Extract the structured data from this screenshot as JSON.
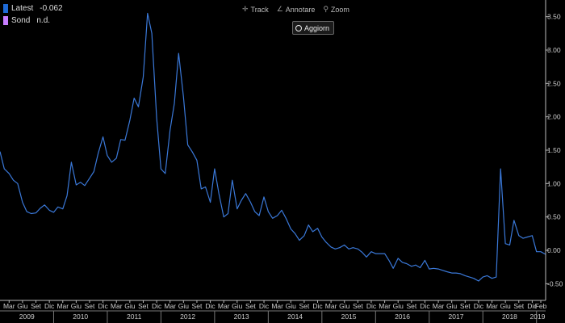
{
  "toolbar": {
    "track_label": "Track",
    "annotate_label": "Annotare",
    "zoom_label": "Zoom",
    "update_label": "Aggiorn",
    "icons": [
      "crosshair-icon",
      "pencil-icon",
      "magnifier-icon",
      "refresh-circle-icon"
    ]
  },
  "legend": {
    "items": [
      {
        "label": "Latest",
        "value": "-0.062",
        "color": "#1e6ad6"
      },
      {
        "label": "Sond",
        "value": "n.d.",
        "color": "#c77dff"
      }
    ]
  },
  "chart_data": {
    "type": "line",
    "background": "#000000",
    "line_color": "#3a78d8",
    "grid": false,
    "y_axis_position": "right",
    "ylim": [
      -0.75,
      3.75
    ],
    "y_ticks": [
      3.5,
      3.0,
      2.5,
      2.0,
      1.5,
      1.0,
      0.5,
      0.0,
      -0.5
    ],
    "y_tick_labels": [
      "3.50",
      "3.00",
      "2.50",
      "2.00",
      "1.50",
      "1.00",
      "0.50",
      "0.00",
      "-0.50"
    ],
    "x_month_labels": [
      {
        "t": 2009.17,
        "label": "Mar"
      },
      {
        "t": 2009.42,
        "label": "Giu"
      },
      {
        "t": 2009.67,
        "label": "Set"
      },
      {
        "t": 2009.92,
        "label": "Dic"
      },
      {
        "t": 2010.17,
        "label": "Mar"
      },
      {
        "t": 2010.42,
        "label": "Giu"
      },
      {
        "t": 2010.67,
        "label": "Set"
      },
      {
        "t": 2010.92,
        "label": "Dic"
      },
      {
        "t": 2011.17,
        "label": "Mar"
      },
      {
        "t": 2011.42,
        "label": "Giu"
      },
      {
        "t": 2011.67,
        "label": "Set"
      },
      {
        "t": 2011.92,
        "label": "Dic"
      },
      {
        "t": 2012.17,
        "label": "Mar"
      },
      {
        "t": 2012.42,
        "label": "Giu"
      },
      {
        "t": 2012.67,
        "label": "Set"
      },
      {
        "t": 2012.92,
        "label": "Dic"
      },
      {
        "t": 2013.17,
        "label": "Mar"
      },
      {
        "t": 2013.42,
        "label": "Giu"
      },
      {
        "t": 2013.67,
        "label": "Set"
      },
      {
        "t": 2013.92,
        "label": "Dic"
      },
      {
        "t": 2014.17,
        "label": "Mar"
      },
      {
        "t": 2014.42,
        "label": "Giu"
      },
      {
        "t": 2014.67,
        "label": "Set"
      },
      {
        "t": 2014.92,
        "label": "Dic"
      },
      {
        "t": 2015.17,
        "label": "Mar"
      },
      {
        "t": 2015.42,
        "label": "Giu"
      },
      {
        "t": 2015.67,
        "label": "Set"
      },
      {
        "t": 2015.92,
        "label": "Dic"
      },
      {
        "t": 2016.17,
        "label": "Mar"
      },
      {
        "t": 2016.42,
        "label": "Giu"
      },
      {
        "t": 2016.67,
        "label": "Set"
      },
      {
        "t": 2016.92,
        "label": "Dic"
      },
      {
        "t": 2017.17,
        "label": "Mar"
      },
      {
        "t": 2017.42,
        "label": "Giu"
      },
      {
        "t": 2017.67,
        "label": "Set"
      },
      {
        "t": 2017.92,
        "label": "Dic"
      },
      {
        "t": 2018.17,
        "label": "Mar"
      },
      {
        "t": 2018.42,
        "label": "Giu"
      },
      {
        "t": 2018.67,
        "label": "Set"
      },
      {
        "t": 2018.92,
        "label": "Dic"
      },
      {
        "t": 2019.08,
        "label": "Feb"
      }
    ],
    "x_year_labels": [
      {
        "t": 2009.5,
        "label": "2009"
      },
      {
        "t": 2010.5,
        "label": "2010"
      },
      {
        "t": 2011.5,
        "label": "2011"
      },
      {
        "t": 2012.5,
        "label": "2012"
      },
      {
        "t": 2013.5,
        "label": "2013"
      },
      {
        "t": 2014.5,
        "label": "2014"
      },
      {
        "t": 2015.5,
        "label": "2015"
      },
      {
        "t": 2016.5,
        "label": "2016"
      },
      {
        "t": 2017.5,
        "label": "2017"
      },
      {
        "t": 2018.5,
        "label": "2018"
      },
      {
        "t": 2019.08,
        "label": "2019"
      }
    ],
    "xlim": [
      2009.0,
      2019.17
    ],
    "series": [
      {
        "x": [
          2009.0,
          2009.08,
          2009.17,
          2009.25,
          2009.33,
          2009.42,
          2009.5,
          2009.58,
          2009.67,
          2009.75,
          2009.83,
          2009.92,
          2010.0,
          2010.08,
          2010.17,
          2010.25,
          2010.33,
          2010.42,
          2010.5,
          2010.58,
          2010.67,
          2010.75,
          2010.83,
          2010.92,
          2011.0,
          2011.08,
          2011.17,
          2011.25,
          2011.33,
          2011.42,
          2011.5,
          2011.58,
          2011.67,
          2011.75,
          2011.83,
          2011.92,
          2012.0,
          2012.08,
          2012.17,
          2012.25,
          2012.33,
          2012.42,
          2012.5,
          2012.58,
          2012.67,
          2012.75,
          2012.83,
          2012.92,
          2013.0,
          2013.08,
          2013.17,
          2013.25,
          2013.33,
          2013.42,
          2013.5,
          2013.58,
          2013.67,
          2013.75,
          2013.83,
          2013.92,
          2014.0,
          2014.08,
          2014.17,
          2014.25,
          2014.33,
          2014.42,
          2014.5,
          2014.58,
          2014.67,
          2014.75,
          2014.83,
          2014.92,
          2015.0,
          2015.08,
          2015.17,
          2015.25,
          2015.33,
          2015.42,
          2015.5,
          2015.58,
          2015.67,
          2015.75,
          2015.83,
          2015.92,
          2016.0,
          2016.08,
          2016.17,
          2016.25,
          2016.33,
          2016.42,
          2016.5,
          2016.58,
          2016.67,
          2016.75,
          2016.83,
          2016.92,
          2017.0,
          2017.08,
          2017.17,
          2017.25,
          2017.33,
          2017.42,
          2017.5,
          2017.58,
          2017.67,
          2017.75,
          2017.83,
          2017.92,
          2018.0,
          2018.08,
          2018.17,
          2018.25,
          2018.33,
          2018.42,
          2018.5,
          2018.58,
          2018.67,
          2018.75,
          2018.83,
          2018.92,
          2019.0,
          2019.08,
          2019.17
        ],
        "y": [
          1.48,
          1.22,
          1.15,
          1.05,
          1.0,
          0.72,
          0.58,
          0.55,
          0.56,
          0.63,
          0.68,
          0.6,
          0.57,
          0.65,
          0.62,
          0.82,
          1.32,
          0.98,
          1.02,
          0.97,
          1.08,
          1.18,
          1.45,
          1.7,
          1.42,
          1.32,
          1.38,
          1.66,
          1.65,
          1.95,
          2.28,
          2.15,
          2.6,
          3.55,
          3.25,
          1.98,
          1.22,
          1.15,
          1.8,
          2.2,
          2.95,
          2.3,
          1.58,
          1.48,
          1.35,
          0.92,
          0.95,
          0.72,
          1.22,
          0.85,
          0.5,
          0.55,
          1.05,
          0.62,
          0.75,
          0.85,
          0.72,
          0.58,
          0.52,
          0.8,
          0.58,
          0.48,
          0.52,
          0.6,
          0.48,
          0.32,
          0.25,
          0.15,
          0.22,
          0.38,
          0.28,
          0.33,
          0.2,
          0.12,
          0.05,
          0.02,
          0.04,
          0.08,
          0.02,
          0.04,
          0.02,
          -0.03,
          -0.1,
          -0.02,
          -0.05,
          -0.05,
          -0.05,
          -0.15,
          -0.27,
          -0.12,
          -0.18,
          -0.2,
          -0.24,
          -0.22,
          -0.26,
          -0.15,
          -0.28,
          -0.27,
          -0.28,
          -0.3,
          -0.32,
          -0.34,
          -0.34,
          -0.35,
          -0.38,
          -0.4,
          -0.42,
          -0.46,
          -0.4,
          -0.38,
          -0.42,
          -0.4,
          1.22,
          0.1,
          0.08,
          0.45,
          0.22,
          0.18,
          0.2,
          0.22,
          -0.02,
          -0.02,
          -0.06
        ]
      }
    ]
  }
}
